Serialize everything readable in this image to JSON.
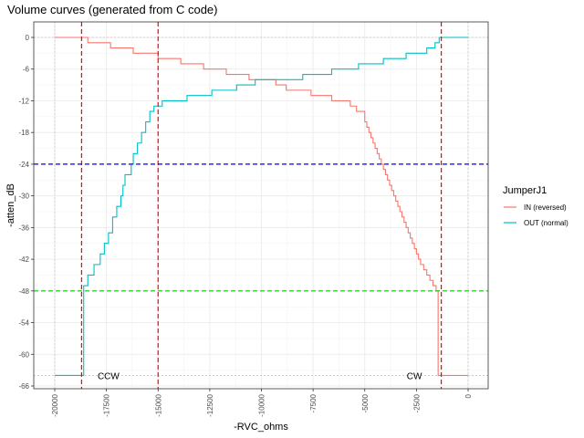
{
  "chart_data": {
    "type": "line",
    "title": "Volume curves (generated from C code)",
    "xlabel": "-RVC_ohms",
    "ylabel": "-atten_dB",
    "xlim": [
      -20000,
      0
    ],
    "ylim": [
      -66,
      0
    ],
    "x_ticks": [
      -20000,
      -17500,
      -15000,
      -12500,
      -10000,
      -7500,
      -5000,
      -2500,
      0
    ],
    "x_tick_labels": [
      "-20000",
      "-17500",
      "-15000",
      "-12500",
      "-10000",
      "-7500",
      "-5000",
      "-2500",
      "0"
    ],
    "y_ticks": [
      0,
      -6,
      -12,
      -18,
      -24,
      -30,
      -36,
      -42,
      -48,
      -54,
      -60,
      -66
    ],
    "y_tick_labels": [
      "0",
      "-6",
      "-12",
      "-18",
      "-24",
      "-30",
      "-36",
      "-42",
      "-48",
      "-54",
      "-60",
      "-66"
    ],
    "grid": true,
    "legend": {
      "title": "JumperJ1",
      "position": "right",
      "entries": [
        {
          "label": "IN (reversed)",
          "color": "#F8766D"
        },
        {
          "label": "OUT (normal)",
          "color": "#00BFC4"
        }
      ]
    },
    "series": [
      {
        "name": "IN (reversed)",
        "color": "#F8766D",
        "step": true,
        "points": [
          [
            -20000,
            0
          ],
          [
            -18400,
            -1
          ],
          [
            -17300,
            -2
          ],
          [
            -16200,
            -3
          ],
          [
            -15000,
            -4
          ],
          [
            -13900,
            -5
          ],
          [
            -12800,
            -6
          ],
          [
            -11700,
            -7
          ],
          [
            -10600,
            -8
          ],
          [
            -9300,
            -9
          ],
          [
            -8800,
            -10
          ],
          [
            -7600,
            -11
          ],
          [
            -6600,
            -12
          ],
          [
            -5700,
            -13
          ],
          [
            -5400,
            -14
          ],
          [
            -5000,
            -16
          ],
          [
            -4900,
            -17
          ],
          [
            -4800,
            -18
          ],
          [
            -4700,
            -19
          ],
          [
            -4600,
            -20
          ],
          [
            -4500,
            -21
          ],
          [
            -4400,
            -22
          ],
          [
            -4300,
            -23
          ],
          [
            -4200,
            -24
          ],
          [
            -4100,
            -25
          ],
          [
            -4000,
            -26
          ],
          [
            -3900,
            -27
          ],
          [
            -3800,
            -28
          ],
          [
            -3700,
            -29
          ],
          [
            -3600,
            -30
          ],
          [
            -3500,
            -31
          ],
          [
            -3400,
            -32
          ],
          [
            -3300,
            -33
          ],
          [
            -3200,
            -34
          ],
          [
            -3100,
            -35
          ],
          [
            -3000,
            -36
          ],
          [
            -2900,
            -37
          ],
          [
            -2800,
            -38
          ],
          [
            -2700,
            -39
          ],
          [
            -2600,
            -40
          ],
          [
            -2500,
            -41
          ],
          [
            -2400,
            -42
          ],
          [
            -2300,
            -43
          ],
          [
            -2150,
            -44
          ],
          [
            -2000,
            -45
          ],
          [
            -1850,
            -46
          ],
          [
            -1700,
            -47
          ],
          [
            -1550,
            -48
          ],
          [
            -1450,
            -64
          ],
          [
            0,
            -64
          ]
        ]
      },
      {
        "name": "OUT (normal)",
        "color": "#00BFC4",
        "step": true,
        "points": [
          [
            -20000,
            -64
          ],
          [
            -18700,
            -64
          ],
          [
            -18600,
            -47
          ],
          [
            -18400,
            -45
          ],
          [
            -18100,
            -43
          ],
          [
            -17800,
            -41
          ],
          [
            -17600,
            -39
          ],
          [
            -17400,
            -37
          ],
          [
            -17200,
            -34
          ],
          [
            -17000,
            -32
          ],
          [
            -16800,
            -30
          ],
          [
            -16700,
            -28
          ],
          [
            -16600,
            -26
          ],
          [
            -16300,
            -24
          ],
          [
            -16200,
            -22
          ],
          [
            -16000,
            -20
          ],
          [
            -15800,
            -18
          ],
          [
            -15600,
            -16
          ],
          [
            -15400,
            -14
          ],
          [
            -15200,
            -13
          ],
          [
            -14800,
            -12
          ],
          [
            -13600,
            -11
          ],
          [
            -12400,
            -10
          ],
          [
            -11200,
            -9
          ],
          [
            -10300,
            -8
          ],
          [
            -9300,
            -8
          ],
          [
            -8000,
            -7
          ],
          [
            -6600,
            -6
          ],
          [
            -5300,
            -5
          ],
          [
            -4100,
            -4
          ],
          [
            -3000,
            -3
          ],
          [
            -2000,
            -2
          ],
          [
            -1600,
            -1
          ],
          [
            -1400,
            0
          ],
          [
            0,
            0
          ]
        ]
      }
    ],
    "reference_lines": [
      {
        "axis": "x",
        "value": -18700,
        "color": "#FF0000",
        "style": "dashed"
      },
      {
        "axis": "x",
        "value": -15000,
        "color": "#FF0000",
        "style": "dashed"
      },
      {
        "axis": "x",
        "value": -1300,
        "color": "#FF0000",
        "style": "dashed"
      },
      {
        "axis": "y",
        "value": -24,
        "color": "#0000FF",
        "style": "dashed"
      },
      {
        "axis": "y",
        "value": -48,
        "color": "#00CC00",
        "style": "dashed"
      }
    ],
    "faint_lines": [
      {
        "axis": "x",
        "value": -20000
      },
      {
        "axis": "x",
        "value": 0
      },
      {
        "axis": "y",
        "value": 0
      },
      {
        "axis": "y",
        "value": -64
      }
    ],
    "annotations": [
      {
        "text": "CCW",
        "x": -17400,
        "y": -64
      },
      {
        "text": "CW",
        "x": -2600,
        "y": -64
      }
    ]
  }
}
